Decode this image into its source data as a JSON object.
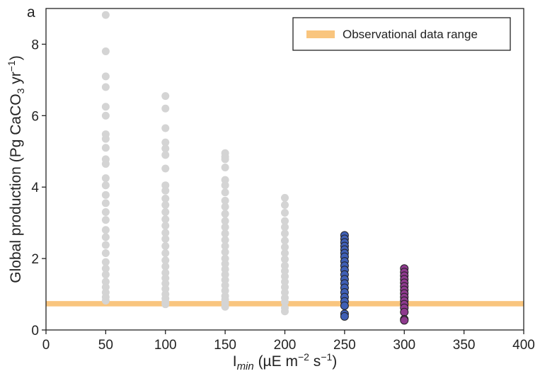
{
  "panel_label": "a",
  "chart_data": {
    "type": "scatter",
    "title": "",
    "xlabel": {
      "main": "I",
      "sub": "min",
      "rest": " (µE m",
      "sup1": "−2",
      "mid": " s",
      "sup2": "−1",
      "end": ")"
    },
    "ylabel": {
      "main": "Global production (Pg CaCO",
      "sub": "3",
      "mid": " yr",
      "sup": "−1",
      "end": ")"
    },
    "xlim": [
      0,
      400
    ],
    "ylim": [
      0,
      9
    ],
    "xticks": [
      0,
      50,
      100,
      150,
      200,
      250,
      300,
      350,
      400
    ],
    "yticks": [
      0,
      2,
      4,
      6,
      8
    ],
    "xtick_labels": [
      "0",
      "50",
      "100",
      "150",
      "200",
      "250",
      "300",
      "350",
      "400"
    ],
    "ytick_labels": [
      "0",
      "2",
      "4",
      "6",
      "8"
    ],
    "grid": false,
    "legend_position": "top-right",
    "legend": [
      "Observational data range"
    ],
    "band": {
      "name": "Observational data range",
      "ymin": 0.66,
      "ymax": 0.81,
      "color": "#f9c57e"
    },
    "series": [
      {
        "x": 50,
        "color": "#d4d4d4",
        "edge": "none",
        "values": [
          8.82,
          7.8,
          7.1,
          6.8,
          6.25,
          6.0,
          5.48,
          5.35,
          5.1,
          4.78,
          4.65,
          4.25,
          4.05,
          3.78,
          3.55,
          3.3,
          3.08,
          2.8,
          2.6,
          2.38,
          2.15,
          1.9,
          1.72,
          1.55,
          1.35,
          1.2,
          1.05,
          0.92,
          0.82
        ]
      },
      {
        "x": 100,
        "color": "#d4d4d4",
        "edge": "none",
        "values": [
          6.55,
          6.2,
          5.65,
          5.25,
          5.08,
          4.9,
          4.52,
          4.05,
          3.9,
          3.68,
          3.5,
          3.3,
          3.1,
          2.92,
          2.72,
          2.55,
          2.35,
          2.15,
          1.95,
          1.78,
          1.6,
          1.45,
          1.3,
          1.15,
          1.0,
          0.88,
          0.78,
          0.72
        ]
      },
      {
        "x": 150,
        "color": "#d4d4d4",
        "edge": "none",
        "values": [
          4.95,
          4.85,
          4.78,
          4.55,
          4.2,
          4.05,
          3.85,
          3.62,
          3.45,
          3.25,
          3.05,
          2.88,
          2.7,
          2.52,
          2.35,
          2.18,
          2.0,
          1.85,
          1.7,
          1.55,
          1.4,
          1.25,
          1.1,
          0.95,
          0.85,
          0.75,
          0.65
        ]
      },
      {
        "x": 200,
        "color": "#d4d4d4",
        "edge": "none",
        "values": [
          3.7,
          3.5,
          3.28,
          3.05,
          2.88,
          2.7,
          2.5,
          2.32,
          2.15,
          1.98,
          1.8,
          1.65,
          1.5,
          1.35,
          1.2,
          1.05,
          0.9,
          0.78,
          0.62,
          0.52
        ]
      },
      {
        "x": 250,
        "color": "#3f5fb5",
        "edge": "#222222",
        "values": [
          2.65,
          2.55,
          2.45,
          2.35,
          2.25,
          2.15,
          2.05,
          1.92,
          1.8,
          1.68,
          1.55,
          1.42,
          1.3,
          1.18,
          1.05,
          0.92,
          0.8,
          0.68,
          0.45,
          0.38
        ]
      },
      {
        "x": 300,
        "color": "#8e3a8e",
        "edge": "#222222",
        "values": [
          1.72,
          1.62,
          1.52,
          1.42,
          1.32,
          1.22,
          1.12,
          1.02,
          0.92,
          0.82,
          0.72,
          0.62,
          0.5,
          0.3,
          0.27
        ]
      }
    ]
  }
}
